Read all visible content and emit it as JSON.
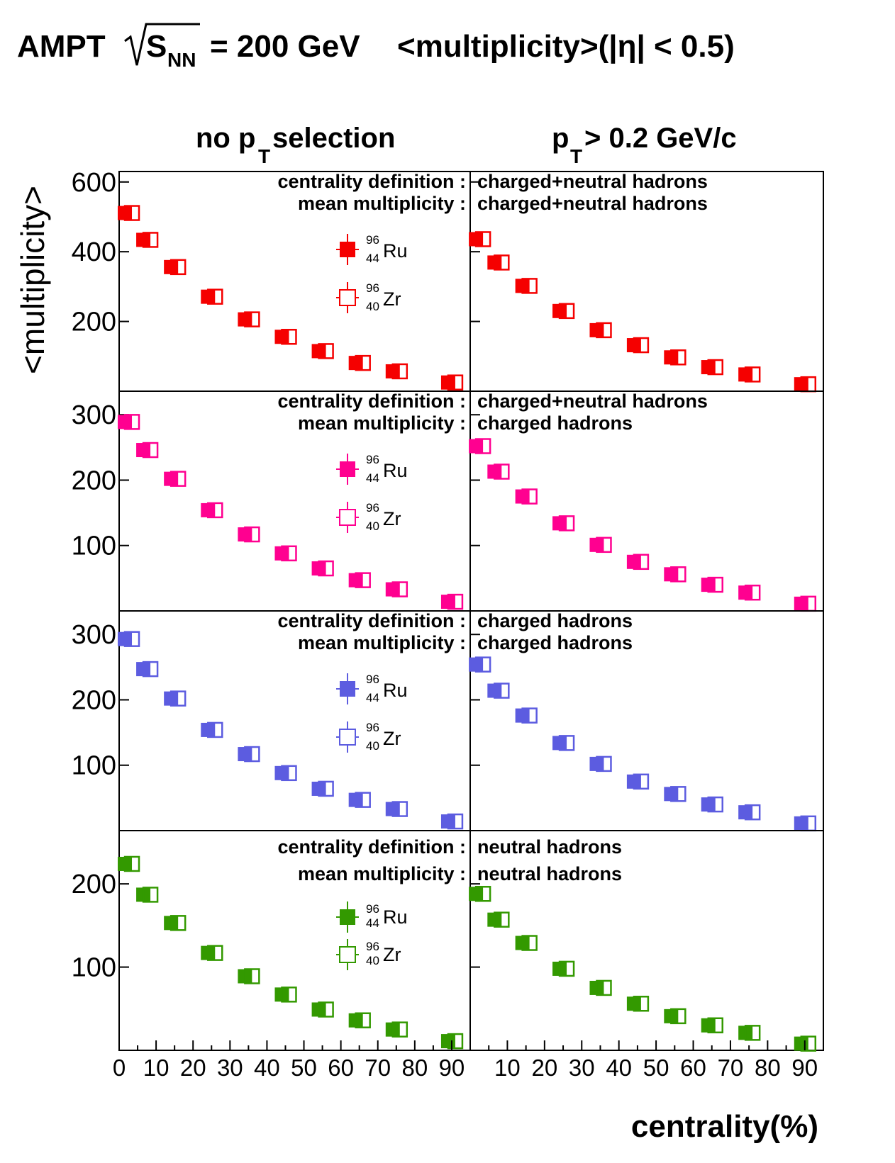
{
  "title": {
    "prefix": "AMPT",
    "sqrt_s": "S",
    "sqrt_sub": "NN",
    "energy": "= 200 GeV",
    "observable": "<multiplicity>(|η| < 0.5)"
  },
  "columns": [
    {
      "label": "no p",
      "sub": "T",
      "suffix": " selection"
    },
    {
      "label": "p",
      "sub": "T",
      "suffix": " > 0.2 GeV/c"
    }
  ],
  "ylabel": "<multiplicity>",
  "xlabel": "centrality(%)",
  "info_labels": {
    "centrality": "centrality definition :",
    "mean": "mean multiplicity :"
  },
  "legend": {
    "ru": {
      "mass": "96",
      "charge": "44",
      "symbol": "Ru"
    },
    "zr": {
      "mass": "96",
      "charge": "40",
      "symbol": "Zr"
    }
  },
  "chart_data": {
    "type": "scatter",
    "x": [
      2.5,
      7.5,
      15,
      25,
      35,
      45,
      55,
      65,
      75,
      90
    ],
    "xlim": [
      0,
      95
    ],
    "xticks_left": [
      "0",
      "10",
      "20",
      "30",
      "40",
      "50",
      "60",
      "70",
      "80",
      "90"
    ],
    "xticks_right": [
      "10",
      "20",
      "30",
      "40",
      "50",
      "60",
      "70",
      "80",
      "90"
    ],
    "rows": [
      {
        "color": "#f50000",
        "centrality_definition": "charged+neutral hadrons",
        "mean_multiplicity": "charged+neutral hadrons",
        "ylim": [
          0,
          630
        ],
        "yticks": [
          200,
          400,
          600
        ],
        "left_values": [
          511,
          434,
          356,
          271,
          206,
          156,
          115,
          81,
          57,
          25
        ],
        "right_values": [
          436,
          369,
          302,
          230,
          175,
          132,
          97,
          69,
          48,
          20
        ]
      },
      {
        "color": "#ff0090",
        "centrality_definition": "charged+neutral hadrons",
        "mean_multiplicity": "charged hadrons",
        "ylim": [
          0,
          336
        ],
        "yticks": [
          100,
          200,
          300
        ],
        "left_values": [
          289,
          246,
          202,
          154,
          117,
          88,
          65,
          47,
          33,
          14
        ],
        "right_values": [
          252,
          213,
          175,
          134,
          101,
          75,
          56,
          40,
          28,
          11
        ]
      },
      {
        "color": "#5c5ce0",
        "centrality_definition": "charged hadrons",
        "mean_multiplicity": "charged hadrons",
        "ylim": [
          0,
          336
        ],
        "yticks": [
          100,
          200,
          300
        ],
        "left_values": [
          293,
          247,
          202,
          154,
          117,
          88,
          64,
          47,
          33,
          14
        ],
        "right_values": [
          254,
          214,
          176,
          134,
          102,
          75,
          56,
          40,
          28,
          11
        ]
      },
      {
        "color": "#339900",
        "centrality_definition": "neutral hadrons",
        "mean_multiplicity": "neutral hadrons",
        "ylim": [
          0,
          264
        ],
        "yticks": [
          100,
          200
        ],
        "left_values": [
          224,
          187,
          153,
          117,
          89,
          67,
          49,
          36,
          25,
          11
        ],
        "right_values": [
          188,
          157,
          129,
          98,
          75,
          56,
          41,
          30,
          21,
          8
        ]
      }
    ]
  }
}
